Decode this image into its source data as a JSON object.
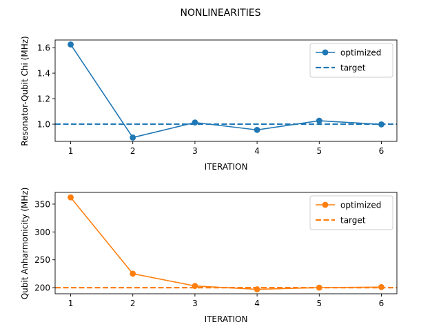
{
  "title": "NONLINEARITIES",
  "chart_data": [
    {
      "type": "line",
      "title": "",
      "xlabel": "ITERATION",
      "ylabel": "Resonator-Qubit Chi (MHz)",
      "x": [
        1,
        2,
        3,
        4,
        5,
        6
      ],
      "xlim": [
        0.75,
        6.25
      ],
      "ylim": [
        0.865,
        1.66
      ],
      "xticks": [
        1,
        2,
        3,
        4,
        5,
        6
      ],
      "yticks": [
        1.0,
        1.2,
        1.4,
        1.6
      ],
      "ytick_labels": [
        "1.0",
        "1.2",
        "1.4",
        "1.6"
      ],
      "grid": false,
      "legend_position": "upper right",
      "series": [
        {
          "name": "optimized",
          "style": "line-marker",
          "color": "#1f77b4",
          "values": [
            1.625,
            0.895,
            1.013,
            0.955,
            1.027,
            0.998
          ]
        },
        {
          "name": "target",
          "style": "dashed",
          "color": "#1f77b4",
          "value": 1.0
        }
      ]
    },
    {
      "type": "line",
      "title": "",
      "xlabel": "ITERATION",
      "ylabel": "Qubit Anharmonicity (MHz)",
      "x": [
        1,
        2,
        3,
        4,
        5,
        6
      ],
      "xlim": [
        0.75,
        6.25
      ],
      "ylim": [
        189,
        371
      ],
      "xticks": [
        1,
        2,
        3,
        4,
        5,
        6
      ],
      "yticks": [
        200,
        250,
        300,
        350
      ],
      "ytick_labels": [
        "200",
        "250",
        "300",
        "350"
      ],
      "grid": false,
      "legend_position": "upper right",
      "series": [
        {
          "name": "optimized",
          "style": "line-marker",
          "color": "#ff7f0e",
          "values": [
            362,
            225,
            203,
            197,
            200,
            201
          ]
        },
        {
          "name": "target",
          "style": "dashed",
          "color": "#ff7f0e",
          "value": 200
        }
      ]
    }
  ]
}
